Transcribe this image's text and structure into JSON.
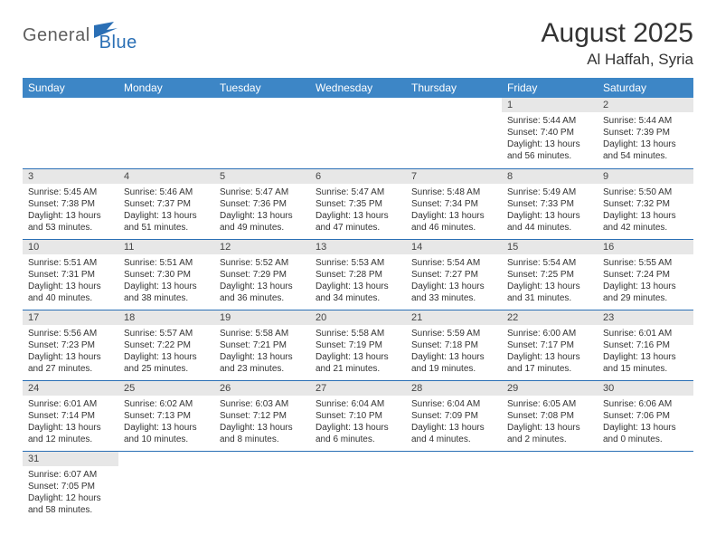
{
  "logo": {
    "part1": "General",
    "part2": "Blue"
  },
  "title": {
    "monthYear": "August 2025",
    "location": "Al Haffah, Syria"
  },
  "colors": {
    "headerBg": "#3d86c6",
    "headerText": "#ffffff",
    "dayNumBg": "#e7e7e7",
    "border": "#2a6fb5",
    "logoGray": "#5f5f5f",
    "logoBlue": "#2a6fb5"
  },
  "dayHeaders": [
    "Sunday",
    "Monday",
    "Tuesday",
    "Wednesday",
    "Thursday",
    "Friday",
    "Saturday"
  ],
  "weeks": [
    [
      null,
      null,
      null,
      null,
      null,
      {
        "n": "1",
        "sr": "5:44 AM",
        "ss": "7:40 PM",
        "dl": "13 hours and 56 minutes."
      },
      {
        "n": "2",
        "sr": "5:44 AM",
        "ss": "7:39 PM",
        "dl": "13 hours and 54 minutes."
      }
    ],
    [
      {
        "n": "3",
        "sr": "5:45 AM",
        "ss": "7:38 PM",
        "dl": "13 hours and 53 minutes."
      },
      {
        "n": "4",
        "sr": "5:46 AM",
        "ss": "7:37 PM",
        "dl": "13 hours and 51 minutes."
      },
      {
        "n": "5",
        "sr": "5:47 AM",
        "ss": "7:36 PM",
        "dl": "13 hours and 49 minutes."
      },
      {
        "n": "6",
        "sr": "5:47 AM",
        "ss": "7:35 PM",
        "dl": "13 hours and 47 minutes."
      },
      {
        "n": "7",
        "sr": "5:48 AM",
        "ss": "7:34 PM",
        "dl": "13 hours and 46 minutes."
      },
      {
        "n": "8",
        "sr": "5:49 AM",
        "ss": "7:33 PM",
        "dl": "13 hours and 44 minutes."
      },
      {
        "n": "9",
        "sr": "5:50 AM",
        "ss": "7:32 PM",
        "dl": "13 hours and 42 minutes."
      }
    ],
    [
      {
        "n": "10",
        "sr": "5:51 AM",
        "ss": "7:31 PM",
        "dl": "13 hours and 40 minutes."
      },
      {
        "n": "11",
        "sr": "5:51 AM",
        "ss": "7:30 PM",
        "dl": "13 hours and 38 minutes."
      },
      {
        "n": "12",
        "sr": "5:52 AM",
        "ss": "7:29 PM",
        "dl": "13 hours and 36 minutes."
      },
      {
        "n": "13",
        "sr": "5:53 AM",
        "ss": "7:28 PM",
        "dl": "13 hours and 34 minutes."
      },
      {
        "n": "14",
        "sr": "5:54 AM",
        "ss": "7:27 PM",
        "dl": "13 hours and 33 minutes."
      },
      {
        "n": "15",
        "sr": "5:54 AM",
        "ss": "7:25 PM",
        "dl": "13 hours and 31 minutes."
      },
      {
        "n": "16",
        "sr": "5:55 AM",
        "ss": "7:24 PM",
        "dl": "13 hours and 29 minutes."
      }
    ],
    [
      {
        "n": "17",
        "sr": "5:56 AM",
        "ss": "7:23 PM",
        "dl": "13 hours and 27 minutes."
      },
      {
        "n": "18",
        "sr": "5:57 AM",
        "ss": "7:22 PM",
        "dl": "13 hours and 25 minutes."
      },
      {
        "n": "19",
        "sr": "5:58 AM",
        "ss": "7:21 PM",
        "dl": "13 hours and 23 minutes."
      },
      {
        "n": "20",
        "sr": "5:58 AM",
        "ss": "7:19 PM",
        "dl": "13 hours and 21 minutes."
      },
      {
        "n": "21",
        "sr": "5:59 AM",
        "ss": "7:18 PM",
        "dl": "13 hours and 19 minutes."
      },
      {
        "n": "22",
        "sr": "6:00 AM",
        "ss": "7:17 PM",
        "dl": "13 hours and 17 minutes."
      },
      {
        "n": "23",
        "sr": "6:01 AM",
        "ss": "7:16 PM",
        "dl": "13 hours and 15 minutes."
      }
    ],
    [
      {
        "n": "24",
        "sr": "6:01 AM",
        "ss": "7:14 PM",
        "dl": "13 hours and 12 minutes."
      },
      {
        "n": "25",
        "sr": "6:02 AM",
        "ss": "7:13 PM",
        "dl": "13 hours and 10 minutes."
      },
      {
        "n": "26",
        "sr": "6:03 AM",
        "ss": "7:12 PM",
        "dl": "13 hours and 8 minutes."
      },
      {
        "n": "27",
        "sr": "6:04 AM",
        "ss": "7:10 PM",
        "dl": "13 hours and 6 minutes."
      },
      {
        "n": "28",
        "sr": "6:04 AM",
        "ss": "7:09 PM",
        "dl": "13 hours and 4 minutes."
      },
      {
        "n": "29",
        "sr": "6:05 AM",
        "ss": "7:08 PM",
        "dl": "13 hours and 2 minutes."
      },
      {
        "n": "30",
        "sr": "6:06 AM",
        "ss": "7:06 PM",
        "dl": "13 hours and 0 minutes."
      }
    ],
    [
      {
        "n": "31",
        "sr": "6:07 AM",
        "ss": "7:05 PM",
        "dl": "12 hours and 58 minutes."
      },
      null,
      null,
      null,
      null,
      null,
      null
    ]
  ],
  "labels": {
    "sunrise": "Sunrise:",
    "sunset": "Sunset:",
    "daylight": "Daylight:"
  }
}
